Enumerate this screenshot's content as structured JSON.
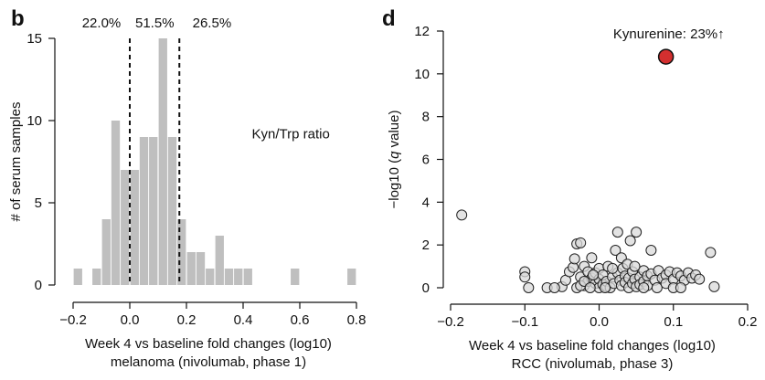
{
  "chart_data": [
    {
      "type": "bar",
      "panel": "b",
      "title": "",
      "xlabel_lines": [
        "Week 4 vs baseline fold changes (log10)",
        "melanoma (nivolumab, phase 1)"
      ],
      "ylabel": "# of serum samples",
      "xlim": [
        -0.2,
        0.8
      ],
      "ylim": [
        0,
        15
      ],
      "xticks": [
        -0.2,
        0.0,
        0.2,
        0.4,
        0.6,
        0.8
      ],
      "xtick_labels": [
        "−0.2",
        "0.0",
        "0.2",
        "0.4",
        "0.6",
        "0.8"
      ],
      "yticks": [
        0,
        5,
        10,
        15
      ],
      "bin_width": 0.0333,
      "bins": [
        {
          "x": -0.183,
          "count": 1
        },
        {
          "x": -0.15,
          "count": 0
        },
        {
          "x": -0.117,
          "count": 1
        },
        {
          "x": -0.083,
          "count": 4
        },
        {
          "x": -0.05,
          "count": 10
        },
        {
          "x": -0.017,
          "count": 7
        },
        {
          "x": 0.017,
          "count": 7
        },
        {
          "x": 0.05,
          "count": 9
        },
        {
          "x": 0.083,
          "count": 9
        },
        {
          "x": 0.117,
          "count": 15
        },
        {
          "x": 0.15,
          "count": 9
        },
        {
          "x": 0.183,
          "count": 4
        },
        {
          "x": 0.217,
          "count": 2
        },
        {
          "x": 0.25,
          "count": 2
        },
        {
          "x": 0.283,
          "count": 1
        },
        {
          "x": 0.317,
          "count": 3
        },
        {
          "x": 0.35,
          "count": 1
        },
        {
          "x": 0.383,
          "count": 1
        },
        {
          "x": 0.417,
          "count": 1
        },
        {
          "x": 0.45,
          "count": 0
        },
        {
          "x": 0.483,
          "count": 0
        },
        {
          "x": 0.517,
          "count": 0
        },
        {
          "x": 0.55,
          "count": 0
        },
        {
          "x": 0.583,
          "count": 1
        },
        {
          "x": 0.617,
          "count": 0
        },
        {
          "x": 0.65,
          "count": 0
        },
        {
          "x": 0.683,
          "count": 0
        },
        {
          "x": 0.717,
          "count": 0
        },
        {
          "x": 0.75,
          "count": 0
        },
        {
          "x": 0.783,
          "count": 1
        }
      ],
      "bar_color": "#bfbfbf",
      "vlines": [
        0.0,
        0.175
      ],
      "percent_labels": [
        {
          "text": "22.0%",
          "x": -0.1
        },
        {
          "text": "51.5%",
          "x": 0.088
        },
        {
          "text": "26.5%",
          "x": 0.29
        }
      ],
      "annotation": {
        "text": "Kyn/Trp ratio",
        "x": 0.45,
        "y": 9.2
      }
    },
    {
      "type": "scatter",
      "panel": "d",
      "title": "",
      "xlabel_lines": [
        "Week 4 vs baseline fold changes (log10)",
        "RCC (nivolumab, phase 3)"
      ],
      "ylabel": "−log10 (q value)",
      "ylabel_parts": [
        "−log10 (",
        "q",
        " value)"
      ],
      "xlim": [
        -0.2,
        0.2
      ],
      "ylim": [
        0,
        12
      ],
      "xticks": [
        -0.2,
        -0.1,
        0.0,
        0.1,
        0.2
      ],
      "xtick_labels": [
        "−0.2",
        "−0.1",
        "0.0",
        "0.1",
        "0.2"
      ],
      "yticks": [
        0,
        2,
        4,
        6,
        8,
        10,
        12
      ],
      "point_color": "#d9d9d9",
      "highlight_color": "#d32f2f",
      "highlight": {
        "x": 0.09,
        "y": 10.8,
        "label": "Kynurenine: 23%↑"
      },
      "points": [
        [
          -0.185,
          3.4
        ],
        [
          -0.1,
          0.75
        ],
        [
          -0.1,
          0.5
        ],
        [
          -0.095,
          0.0
        ],
        [
          -0.05,
          0.05
        ],
        [
          -0.045,
          0.35
        ],
        [
          -0.04,
          0.75
        ],
        [
          -0.035,
          0.95
        ],
        [
          -0.033,
          1.35
        ],
        [
          -0.03,
          2.05
        ],
        [
          -0.025,
          2.1
        ],
        [
          -0.025,
          0.5
        ],
        [
          -0.02,
          1.0
        ],
        [
          -0.02,
          0.1
        ],
        [
          -0.015,
          0.75
        ],
        [
          -0.015,
          0.3
        ],
        [
          -0.01,
          0.45
        ],
        [
          -0.01,
          1.4
        ],
        [
          -0.005,
          0.7
        ],
        [
          -0.005,
          0.2
        ],
        [
          0.0,
          0.4
        ],
        [
          0.0,
          0.0
        ],
        [
          0.0,
          0.9
        ],
        [
          0.005,
          0.15
        ],
        [
          0.005,
          0.6
        ],
        [
          0.01,
          0.05
        ],
        [
          0.01,
          0.3
        ],
        [
          0.012,
          1.0
        ],
        [
          0.015,
          0.0
        ],
        [
          0.018,
          0.5
        ],
        [
          0.02,
          0.2
        ],
        [
          0.022,
          1.75
        ],
        [
          0.025,
          2.6
        ],
        [
          0.025,
          0.7
        ],
        [
          0.028,
          0.35
        ],
        [
          0.03,
          1.4
        ],
        [
          0.03,
          0.1
        ],
        [
          0.032,
          0.9
        ],
        [
          0.035,
          0.55
        ],
        [
          0.035,
          0.25
        ],
        [
          0.038,
          1.1
        ],
        [
          0.04,
          0.45
        ],
        [
          0.04,
          0.0
        ],
        [
          0.042,
          2.2
        ],
        [
          0.045,
          0.75
        ],
        [
          0.045,
          0.2
        ],
        [
          0.048,
          0.4
        ],
        [
          0.05,
          2.6
        ],
        [
          0.05,
          0.05
        ],
        [
          0.055,
          0.5
        ],
        [
          0.055,
          0.15
        ],
        [
          0.06,
          0.8
        ],
        [
          0.06,
          0.3
        ],
        [
          0.065,
          0.55
        ],
        [
          0.065,
          0.1
        ],
        [
          0.07,
          0.65
        ],
        [
          0.07,
          1.75
        ],
        [
          0.075,
          0.35
        ],
        [
          0.078,
          0.0
        ],
        [
          0.08,
          0.8
        ],
        [
          0.085,
          0.45
        ],
        [
          0.09,
          0.6
        ],
        [
          0.09,
          0.2
        ],
        [
          0.095,
          0.75
        ],
        [
          0.1,
          0.4
        ],
        [
          0.105,
          0.7
        ],
        [
          0.11,
          0.55
        ],
        [
          0.115,
          0.35
        ],
        [
          0.12,
          0.7
        ],
        [
          0.125,
          0.45
        ],
        [
          0.13,
          0.6
        ],
        [
          0.135,
          0.4
        ],
        [
          0.15,
          1.65
        ],
        [
          0.155,
          0.05
        ],
        [
          -0.07,
          0.0
        ],
        [
          -0.06,
          0.0
        ],
        [
          -0.03,
          0.0
        ],
        [
          -0.025,
          0.1
        ],
        [
          -0.02,
          0.3
        ],
        [
          -0.012,
          0.0
        ],
        [
          -0.008,
          0.6
        ],
        [
          0.008,
          0.0
        ],
        [
          0.018,
          0.9
        ],
        [
          0.048,
          1.0
        ],
        [
          0.06,
          0.0
        ],
        [
          0.1,
          0.0
        ],
        [
          0.11,
          0.0
        ]
      ]
    }
  ]
}
